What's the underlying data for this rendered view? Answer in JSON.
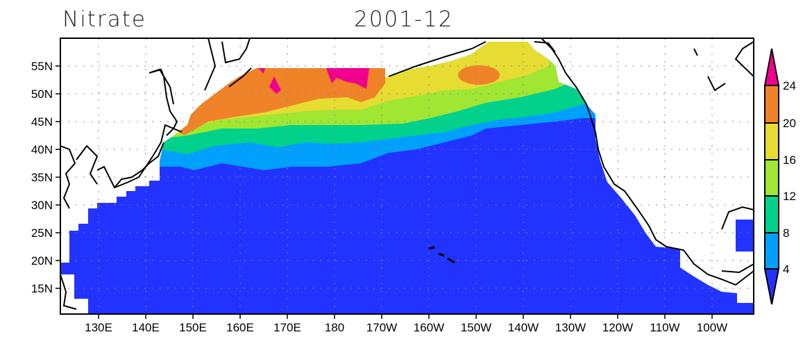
{
  "title_left": "Nitrate",
  "title_center": "2001-12",
  "map": {
    "projection": "lat-lon",
    "lat_labels": [
      "55N",
      "50N",
      "45N",
      "40N",
      "35N",
      "30N",
      "25N",
      "20N",
      "15N"
    ],
    "lon_labels": [
      "130E",
      "140E",
      "150E",
      "160E",
      "170E",
      "180",
      "170W",
      "160W",
      "150W",
      "140W",
      "130W",
      "120W",
      "110W",
      "100W"
    ],
    "grid": "dotted"
  },
  "colorbar": {
    "levels": [
      "4",
      "8",
      "12",
      "16",
      "20",
      "24"
    ],
    "colors": [
      "#2233ff",
      "#00a0ff",
      "#00d28c",
      "#a0e632",
      "#e6dc32",
      "#f08228",
      "#f0008c"
    ],
    "extend": "both"
  }
}
